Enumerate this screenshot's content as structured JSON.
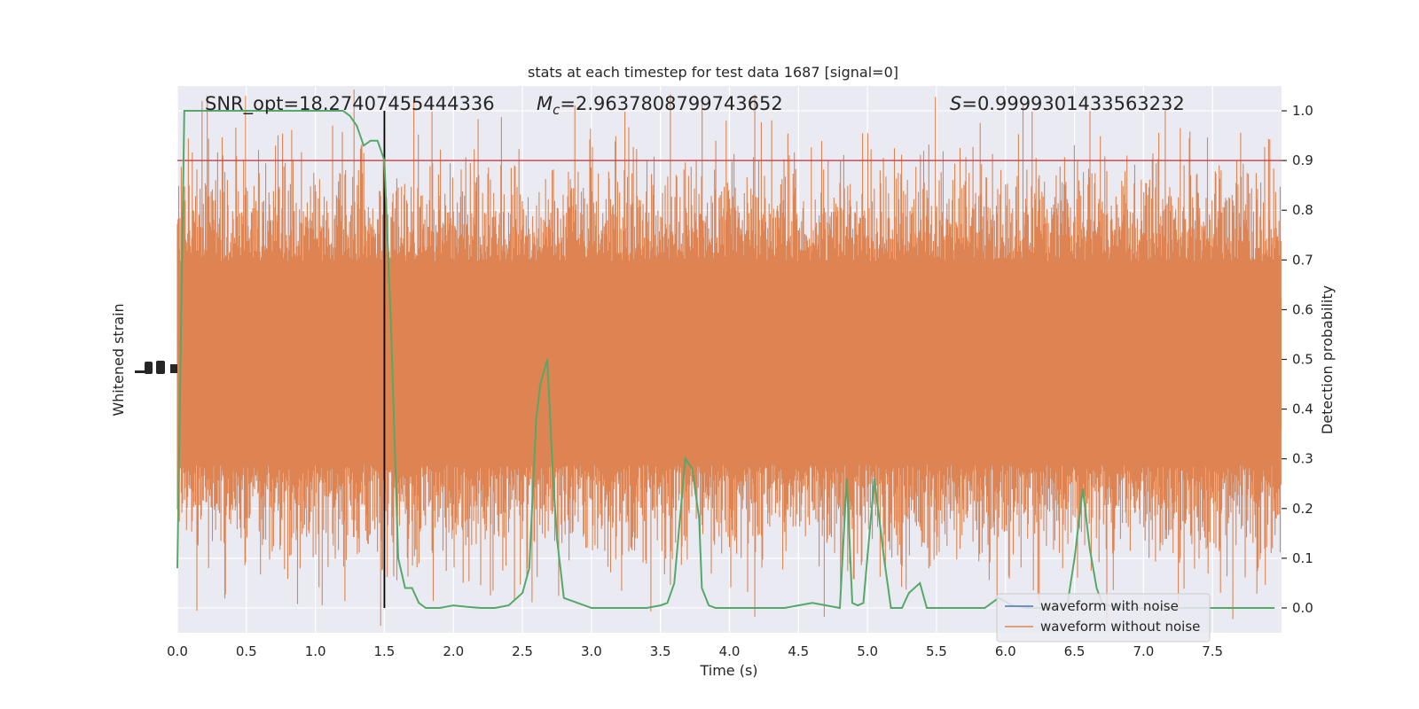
{
  "chart_data": {
    "type": "line",
    "title": "stats at each timestep for test data 1687 [signal=0]",
    "xlabel": "Time (s)",
    "ylabel_left": "Whitened strain",
    "ylabel_right": "Detection probability",
    "xlim": [
      0,
      8
    ],
    "ylim_right": [
      -0.05,
      1.05
    ],
    "x_ticks": [
      "0.0",
      "0.5",
      "1.0",
      "1.5",
      "2.0",
      "2.5",
      "3.0",
      "3.5",
      "4.0",
      "4.5",
      "5.0",
      "5.5",
      "6.0",
      "6.5",
      "7.0",
      "7.5"
    ],
    "y_right_ticks": [
      "0.0",
      "0.1",
      "0.2",
      "0.3",
      "0.4",
      "0.5",
      "0.6",
      "0.7",
      "0.8",
      "0.9",
      "1.0"
    ],
    "grid": true,
    "legend_position": "lower-right",
    "annotations": {
      "snr": "SNR_opt=18.27407455444336",
      "mc_symbol": "M",
      "mc_sub": "c",
      "mc_value": "=2.9637808799743652",
      "s_symbol": "S",
      "s_value": "=0.9999301433563232"
    },
    "threshold": 0.9,
    "vertical_marker_x": 1.5,
    "series": [
      {
        "name": "waveform with noise",
        "color": "#4c72b0",
        "values": []
      },
      {
        "name": "waveform without noise",
        "color": "#dd8452",
        "values": []
      },
      {
        "color": "#55a868",
        "x": [
          0.0,
          0.05,
          0.1,
          0.2,
          0.3,
          0.4,
          0.5,
          0.6,
          0.7,
          0.8,
          0.9,
          1.0,
          1.1,
          1.15,
          1.2,
          1.25,
          1.3,
          1.35,
          1.4,
          1.45,
          1.5,
          1.55,
          1.6,
          1.65,
          1.7,
          1.75,
          1.8,
          1.85,
          1.9,
          2.0,
          2.1,
          2.2,
          2.3,
          2.4,
          2.5,
          2.55,
          2.6,
          2.63,
          2.68,
          2.72,
          2.75,
          2.8,
          2.9,
          3.0,
          3.1,
          3.2,
          3.3,
          3.4,
          3.5,
          3.55,
          3.6,
          3.68,
          3.73,
          3.78,
          3.8,
          3.85,
          3.9,
          4.0,
          4.1,
          4.2,
          4.3,
          4.4,
          4.5,
          4.6,
          4.7,
          4.8,
          4.85,
          4.89,
          4.93,
          4.97,
          5.05,
          5.12,
          5.17,
          5.25,
          5.3,
          5.38,
          5.43,
          5.48,
          5.55,
          5.65,
          5.75,
          5.85,
          5.95,
          6.05,
          6.15,
          6.25,
          6.35,
          6.45,
          6.5,
          6.56,
          6.61,
          6.66,
          6.7,
          6.8,
          6.9,
          7.0,
          7.5,
          7.95
        ],
        "values": [
          0.08,
          1.0,
          1.0,
          1.0,
          1.0,
          1.0,
          1.0,
          1.0,
          1.0,
          1.0,
          1.0,
          1.0,
          1.0,
          1.0,
          1.0,
          0.99,
          0.97,
          0.93,
          0.94,
          0.94,
          0.9,
          0.55,
          0.1,
          0.04,
          0.04,
          0.01,
          0.0,
          0.0,
          0.0,
          0.005,
          0.002,
          0.0,
          0.0,
          0.005,
          0.03,
          0.08,
          0.38,
          0.45,
          0.5,
          0.27,
          0.14,
          0.02,
          0.01,
          0.0,
          0.0,
          0.0,
          0.0,
          0.0,
          0.005,
          0.01,
          0.05,
          0.3,
          0.28,
          0.18,
          0.04,
          0.005,
          0.0,
          0.0,
          0.0,
          0.0,
          0.0,
          0.0,
          0.005,
          0.01,
          0.005,
          0.0,
          0.26,
          0.01,
          0.005,
          0.01,
          0.26,
          0.1,
          0.0,
          0.0,
          0.03,
          0.05,
          0.0,
          0.0,
          0.0,
          0.0,
          0.0,
          0.0,
          0.02,
          0.005,
          0.0,
          0.0,
          0.0,
          0.01,
          0.1,
          0.24,
          0.12,
          0.04,
          0.01,
          0.0,
          0.0,
          0.0,
          0.0,
          0.0
        ]
      }
    ]
  }
}
